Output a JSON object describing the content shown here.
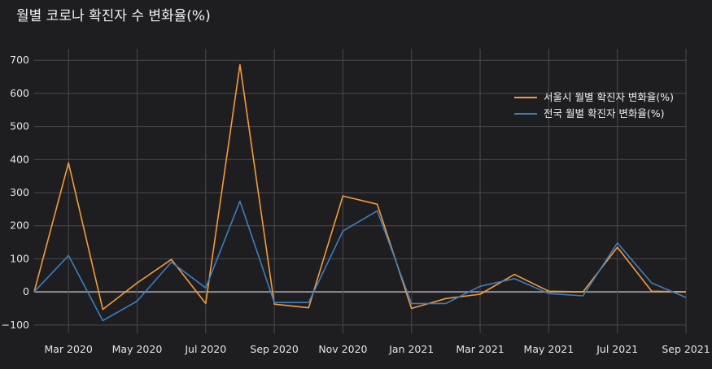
{
  "chart_data": {
    "type": "line",
    "title": "월별 코로나 확진자 수 변화율(%)",
    "xlabel": "",
    "ylabel": "",
    "x": [
      "2020-02",
      "2020-03",
      "2020-04",
      "2020-05",
      "2020-06",
      "2020-07",
      "2020-08",
      "2020-09",
      "2020-10",
      "2020-11",
      "2020-12",
      "2021-01",
      "2021-02",
      "2021-03",
      "2021-04",
      "2021-05",
      "2021-06",
      "2021-07",
      "2021-08",
      "2021-09"
    ],
    "x_ticks": [
      {
        "x": "2020-03",
        "label": "Mar 2020"
      },
      {
        "x": "2020-05",
        "label": "May 2020"
      },
      {
        "x": "2020-07",
        "label": "Jul 2020"
      },
      {
        "x": "2020-09",
        "label": "Sep 2020"
      },
      {
        "x": "2020-11",
        "label": "Nov 2020"
      },
      {
        "x": "2021-01",
        "label": "Jan 2021"
      },
      {
        "x": "2021-03",
        "label": "Mar 2021"
      },
      {
        "x": "2021-05",
        "label": "May 2021"
      },
      {
        "x": "2021-07",
        "label": "Jul 2021"
      },
      {
        "x": "2021-09",
        "label": "Sep 2021"
      }
    ],
    "y_ticks": [
      -100,
      0,
      100,
      200,
      300,
      400,
      500,
      600,
      700
    ],
    "ylim": [
      -125,
      735
    ],
    "grid": true,
    "legend_position": "top-right",
    "series": [
      {
        "name": "서울시 월별 확진자 변화율(%)",
        "color": "#f49b3a",
        "values": [
          0,
          390,
          -53,
          27,
          98,
          -35,
          687,
          -37,
          -48,
          290,
          265,
          -50,
          -20,
          -7,
          53,
          2,
          0,
          135,
          2,
          0
        ]
      },
      {
        "name": "전국 월별 확진자 변화율(%)",
        "color": "#3d7ebf",
        "values": [
          0,
          110,
          -87,
          -28,
          90,
          12,
          274,
          -32,
          -32,
          184,
          245,
          -35,
          -35,
          17,
          40,
          -5,
          -12,
          148,
          27,
          -17
        ]
      }
    ]
  }
}
